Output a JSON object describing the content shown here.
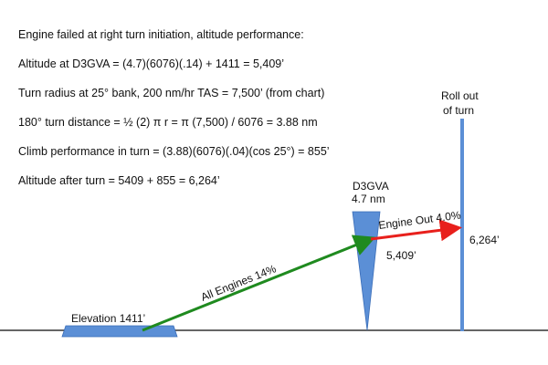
{
  "calculations": [
    "Engine failed at right turn initiation, altitude performance:",
    "Altitude at D3GVA = (4.7)(6076)(.14) + 1411 = 5,409’",
    "Turn radius at 25° bank, 200 nm/hr TAS = 7,500’ (from chart)",
    "180° turn distance = ½ (2) π r = π (7,500) / 6076 = 3.88 nm",
    "Climb performance in turn = (3.88)(6076)(.04)(cos 25°) = 855’",
    "Altitude after turn = 5409 + 855 = 6,264’"
  ],
  "diagram": {
    "rollout_label_line1": "Roll out",
    "rollout_label_line2": "of turn",
    "fix_name": "D3GVA",
    "fix_distance": "4.7 nm",
    "engine_out_label": "Engine Out 4.0%",
    "altitude_at_fix": "5,409’",
    "altitude_after_turn": "6,264’",
    "all_engines_label": "All Engines 14%",
    "runway_label": "Elevation 1411’",
    "colors": {
      "all_engines_arrow": "#1f8a1f",
      "engine_out_arrow": "#e8201c",
      "marker_fill": "#5b8fd6",
      "ground_line": "#333333"
    }
  }
}
